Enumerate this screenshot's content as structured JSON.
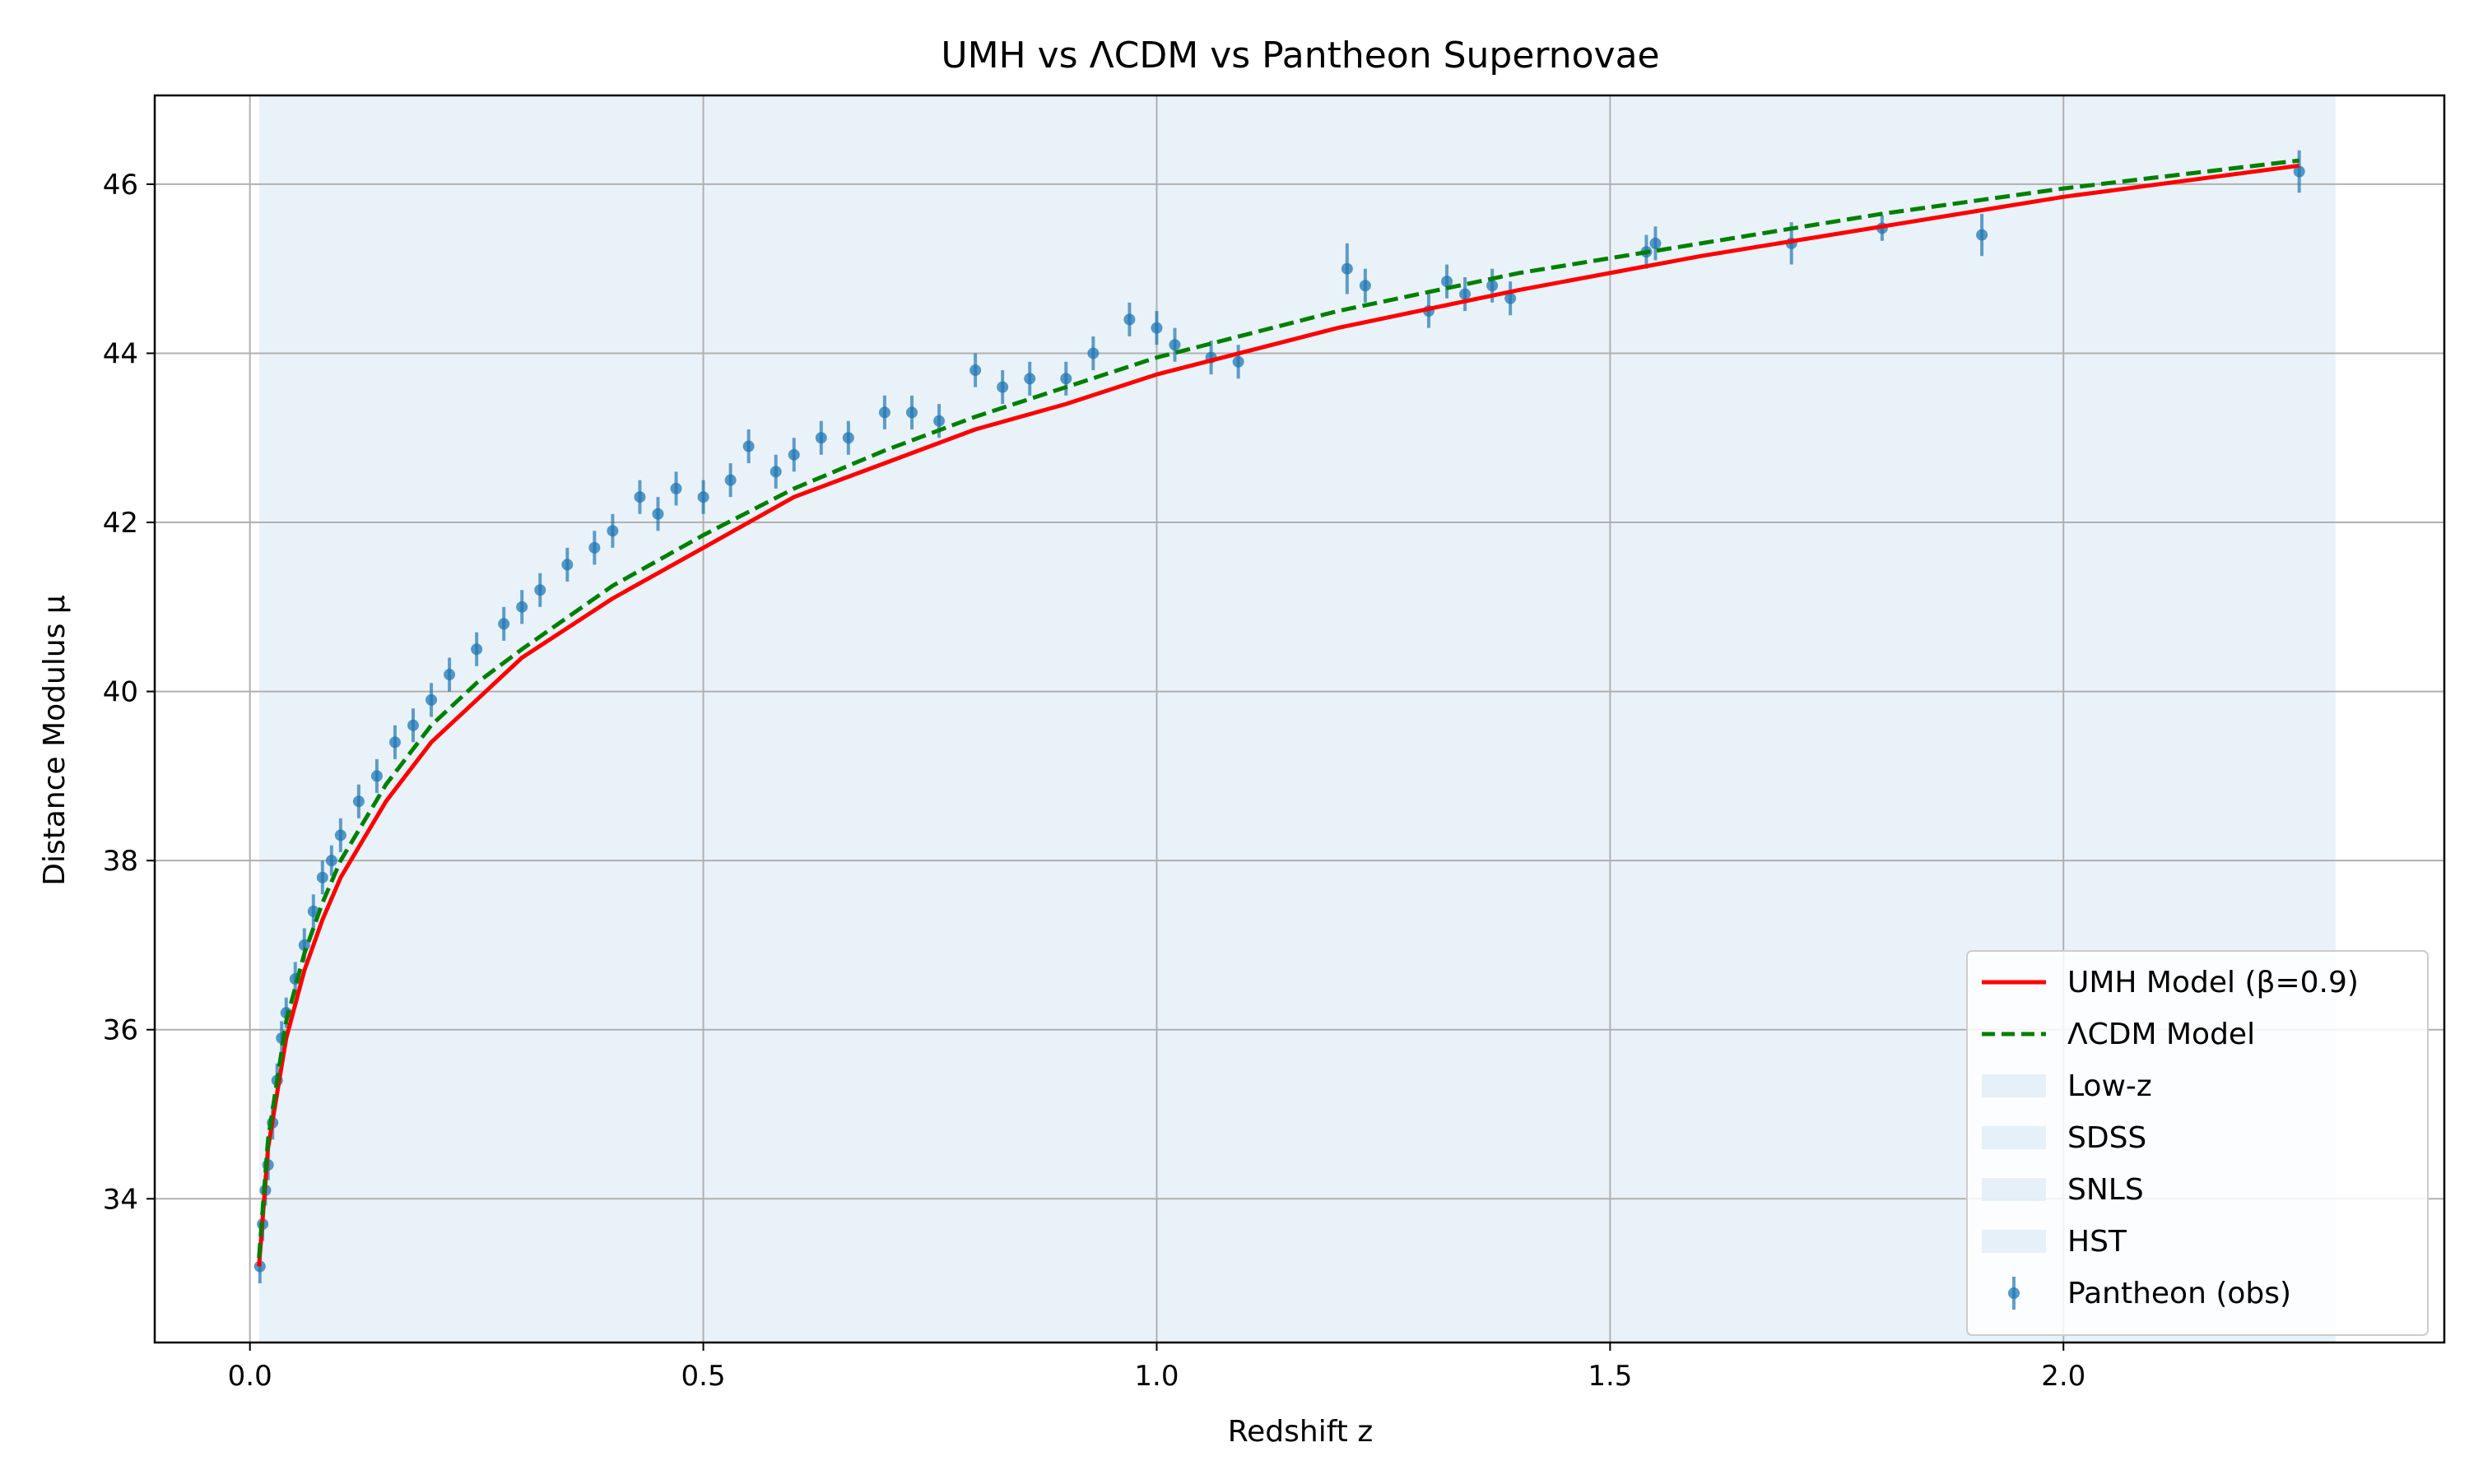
{
  "chart_data": {
    "type": "scatter",
    "title": "UMH vs ΛCDM vs Pantheon Supernovae",
    "xlabel": "Redshift z",
    "ylabel": "Distance Modulus μ",
    "xlim": [
      -0.105,
      2.42
    ],
    "ylim": [
      32.3,
      47.05
    ],
    "xticks": [
      0.0,
      0.5,
      1.0,
      1.5,
      2.0
    ],
    "xtick_labels": [
      "0.0",
      "0.5",
      "1.0",
      "1.5",
      "2.0"
    ],
    "yticks": [
      34,
      36,
      38,
      40,
      42,
      44,
      46
    ],
    "ytick_labels": [
      "34",
      "36",
      "38",
      "40",
      "42",
      "44",
      "46"
    ],
    "grid": true,
    "legend_position": "lower-right",
    "colors": {
      "umh": "#ff0000",
      "lcdm": "#008000",
      "points": "#1f77b4",
      "survey_band": "#dce9f5"
    },
    "survey_bands": [
      {
        "name": "Low-z",
        "x_range": [
          0.01,
          2.3
        ]
      },
      {
        "name": "SDSS",
        "x_range": [
          0.01,
          2.3
        ]
      },
      {
        "name": "SNLS",
        "x_range": [
          0.01,
          2.3
        ]
      },
      {
        "name": "HST",
        "x_range": [
          0.01,
          2.3
        ]
      }
    ],
    "series": [
      {
        "name": "UMH Model (β=0.9)",
        "style": "solid",
        "color": "#ff0000",
        "x": [
          0.01,
          0.02,
          0.04,
          0.06,
          0.08,
          0.1,
          0.15,
          0.2,
          0.25,
          0.3,
          0.4,
          0.5,
          0.6,
          0.7,
          0.8,
          0.9,
          1.0,
          1.2,
          1.4,
          1.6,
          1.8,
          2.0,
          2.26
        ],
        "y": [
          33.2,
          34.6,
          35.9,
          36.7,
          37.3,
          37.8,
          38.7,
          39.4,
          39.9,
          40.4,
          41.1,
          41.7,
          42.3,
          42.7,
          43.1,
          43.4,
          43.75,
          44.3,
          44.75,
          45.15,
          45.5,
          45.85,
          46.22
        ]
      },
      {
        "name": "ΛCDM Model",
        "style": "dashed",
        "color": "#008000",
        "x": [
          0.01,
          0.02,
          0.04,
          0.06,
          0.08,
          0.1,
          0.15,
          0.2,
          0.25,
          0.3,
          0.4,
          0.5,
          0.6,
          0.7,
          0.8,
          0.9,
          1.0,
          1.2,
          1.4,
          1.6,
          1.8,
          2.0,
          2.26
        ],
        "y": [
          33.3,
          34.7,
          36.1,
          36.9,
          37.5,
          38.0,
          38.9,
          39.6,
          40.1,
          40.5,
          41.25,
          41.85,
          42.4,
          42.85,
          43.25,
          43.6,
          43.95,
          44.5,
          44.95,
          45.3,
          45.65,
          45.95,
          46.28
        ]
      },
      {
        "name": "Pantheon (obs)",
        "style": "errorbar",
        "color": "#1f77b4",
        "points": [
          [
            0.011,
            33.2,
            0.2
          ],
          [
            0.014,
            33.7,
            0.2
          ],
          [
            0.017,
            34.1,
            0.18
          ],
          [
            0.02,
            34.4,
            0.18
          ],
          [
            0.025,
            34.9,
            0.2
          ],
          [
            0.03,
            35.4,
            0.2
          ],
          [
            0.035,
            35.9,
            0.2
          ],
          [
            0.04,
            36.2,
            0.18
          ],
          [
            0.05,
            36.6,
            0.2
          ],
          [
            0.06,
            37.0,
            0.2
          ],
          [
            0.07,
            37.4,
            0.2
          ],
          [
            0.08,
            37.8,
            0.2
          ],
          [
            0.09,
            38.0,
            0.18
          ],
          [
            0.1,
            38.3,
            0.2
          ],
          [
            0.12,
            38.7,
            0.2
          ],
          [
            0.14,
            39.0,
            0.2
          ],
          [
            0.16,
            39.4,
            0.2
          ],
          [
            0.18,
            39.6,
            0.2
          ],
          [
            0.2,
            39.9,
            0.2
          ],
          [
            0.22,
            40.2,
            0.2
          ],
          [
            0.25,
            40.5,
            0.2
          ],
          [
            0.28,
            40.8,
            0.2
          ],
          [
            0.3,
            41.0,
            0.2
          ],
          [
            0.32,
            41.2,
            0.2
          ],
          [
            0.35,
            41.5,
            0.2
          ],
          [
            0.38,
            41.7,
            0.2
          ],
          [
            0.4,
            41.9,
            0.2
          ],
          [
            0.43,
            42.3,
            0.2
          ],
          [
            0.45,
            42.1,
            0.2
          ],
          [
            0.47,
            42.4,
            0.2
          ],
          [
            0.5,
            42.3,
            0.2
          ],
          [
            0.53,
            42.5,
            0.2
          ],
          [
            0.55,
            42.9,
            0.2
          ],
          [
            0.58,
            42.6,
            0.2
          ],
          [
            0.6,
            42.8,
            0.2
          ],
          [
            0.63,
            43.0,
            0.2
          ],
          [
            0.66,
            43.0,
            0.2
          ],
          [
            0.7,
            43.3,
            0.2
          ],
          [
            0.73,
            43.3,
            0.2
          ],
          [
            0.76,
            43.2,
            0.2
          ],
          [
            0.8,
            43.8,
            0.2
          ],
          [
            0.83,
            43.6,
            0.2
          ],
          [
            0.86,
            43.7,
            0.2
          ],
          [
            0.9,
            43.7,
            0.2
          ],
          [
            0.93,
            44.0,
            0.2
          ],
          [
            0.97,
            44.4,
            0.2
          ],
          [
            1.0,
            44.3,
            0.2
          ],
          [
            1.02,
            44.1,
            0.2
          ],
          [
            1.06,
            43.95,
            0.2
          ],
          [
            1.09,
            43.9,
            0.2
          ],
          [
            1.21,
            45.0,
            0.3
          ],
          [
            1.23,
            44.8,
            0.2
          ],
          [
            1.3,
            44.5,
            0.2
          ],
          [
            1.32,
            44.85,
            0.2
          ],
          [
            1.34,
            44.7,
            0.2
          ],
          [
            1.37,
            44.8,
            0.2
          ],
          [
            1.39,
            44.65,
            0.2
          ],
          [
            1.54,
            45.2,
            0.2
          ],
          [
            1.55,
            45.3,
            0.2
          ],
          [
            1.7,
            45.3,
            0.25
          ],
          [
            1.8,
            45.48,
            0.15
          ],
          [
            1.91,
            45.4,
            0.25
          ],
          [
            2.26,
            46.15,
            0.25
          ]
        ]
      }
    ],
    "legend": [
      {
        "label": "UMH Model (β=0.9)",
        "kind": "line-solid",
        "color": "#ff0000"
      },
      {
        "label": "ΛCDM Model",
        "kind": "line-dashed",
        "color": "#008000"
      },
      {
        "label": "Low-z",
        "kind": "patch",
        "color": "#dce9f5"
      },
      {
        "label": "SDSS",
        "kind": "patch",
        "color": "#dce9f5"
      },
      {
        "label": "SNLS",
        "kind": "patch",
        "color": "#dce9f5"
      },
      {
        "label": "HST",
        "kind": "patch",
        "color": "#dce9f5"
      },
      {
        "label": "Pantheon (obs)",
        "kind": "errorbar-point",
        "color": "#1f77b4"
      }
    ]
  }
}
